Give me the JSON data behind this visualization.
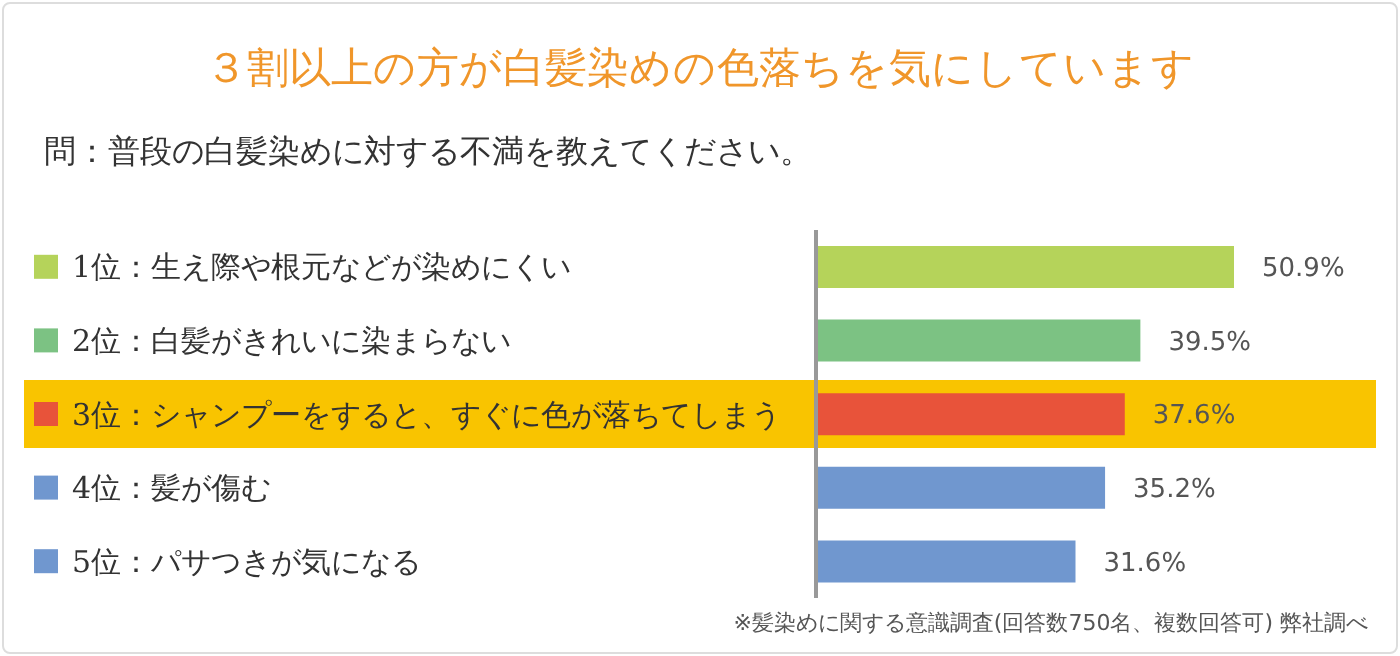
{
  "chart_data": {
    "type": "bar",
    "orientation": "horizontal",
    "title": "３割以上の方が白髪染めの色落ちを気にしています",
    "subtitle": "問：普段の白髪染めに対する不満を教えてください。",
    "categories": [
      "1位：生え際や根元などが染めにくい",
      "2位：白髪がきれいに染まらない",
      "3位：シャンプーをすると、すぐに色が落ちてしまう",
      "4位：髪が傷む",
      "5位：パサつきが気になる"
    ],
    "values": [
      50.9,
      39.5,
      37.6,
      35.2,
      31.6
    ],
    "colors": [
      "#b5d35a",
      "#7cc283",
      "#e8533a",
      "#7097cf",
      "#7097cf"
    ],
    "value_labels": [
      "50.9%",
      "39.5%",
      "37.6%",
      "35.2%",
      "31.6%"
    ],
    "tick_labels": "y",
    "bands": [
      {
        "axis": "y",
        "from": "3位：シャンプーをすると、すぐに色が落ちてしまう",
        "to": "3位：シャンプーをすると、すぐに色が落ちてしまう",
        "color": "#f9c400"
      }
    ],
    "annotations": [
      "※髪染めに関する意識調査(回答数750名、複数回答可) 弊社調べ"
    ]
  }
}
